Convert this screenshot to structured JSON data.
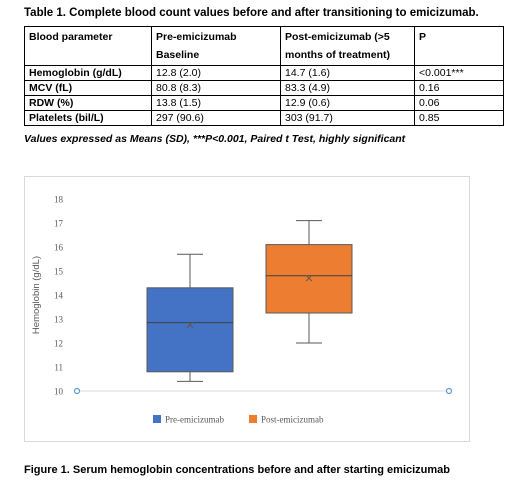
{
  "table": {
    "title": "Table 1. Complete blood count values before and after transitioning to emicizumab.",
    "headers": [
      "Blood parameter",
      "Pre-emicizumab Baseline",
      "Post-emicizumab (>5 months of treatment)",
      "P"
    ],
    "header_lines": {
      "col2_line1": "Pre-emicizumab",
      "col2_line2": "Baseline",
      "col3_line1": "Post-emicizumab (>5",
      "col3_line2": "months of treatment)"
    },
    "rows": [
      {
        "param": "Hemoglobin (g/dL)",
        "pre": "12.8 (2.0)",
        "post": "14.7 (1.6)",
        "p": "<0.001***"
      },
      {
        "param": "MCV (fL)",
        "pre": "80.8 (8.3)",
        "post": "83.3 (4.9)",
        "p": "0.16"
      },
      {
        "param": "RDW (%)",
        "pre": "13.8 (1.5)",
        "post": "12.9 (0.6)",
        "p": "0.06"
      },
      {
        "param": "Platelets (bil/L)",
        "pre": "297 (90.6)",
        "post": "303 (91.7)",
        "p": "0.85"
      }
    ],
    "note": "Values expressed as Means (SD), ***P<0.001, Paired t Test, highly significant"
  },
  "figure": {
    "caption": "Figure 1. Serum hemoglobin concentrations before and after starting emicizumab"
  },
  "chart_data": {
    "type": "box",
    "ylabel": "Hemoglobin (g/dL)",
    "ylim": [
      10,
      18
    ],
    "yticks": [
      10,
      11,
      12,
      13,
      14,
      15,
      16,
      17,
      18
    ],
    "grid": false,
    "legend_position": "bottom",
    "series": [
      {
        "name": "Pre-emicizumab",
        "color": "#4472C4",
        "min": 10.4,
        "q1": 10.8,
        "median": 12.85,
        "q3": 14.3,
        "max": 15.7,
        "mean": 12.75
      },
      {
        "name": "Post-emicizumab",
        "color": "#ED7D31",
        "min": 12.0,
        "q1": 13.25,
        "median": 14.8,
        "q3": 16.1,
        "max": 17.1,
        "mean": 14.7
      }
    ]
  }
}
